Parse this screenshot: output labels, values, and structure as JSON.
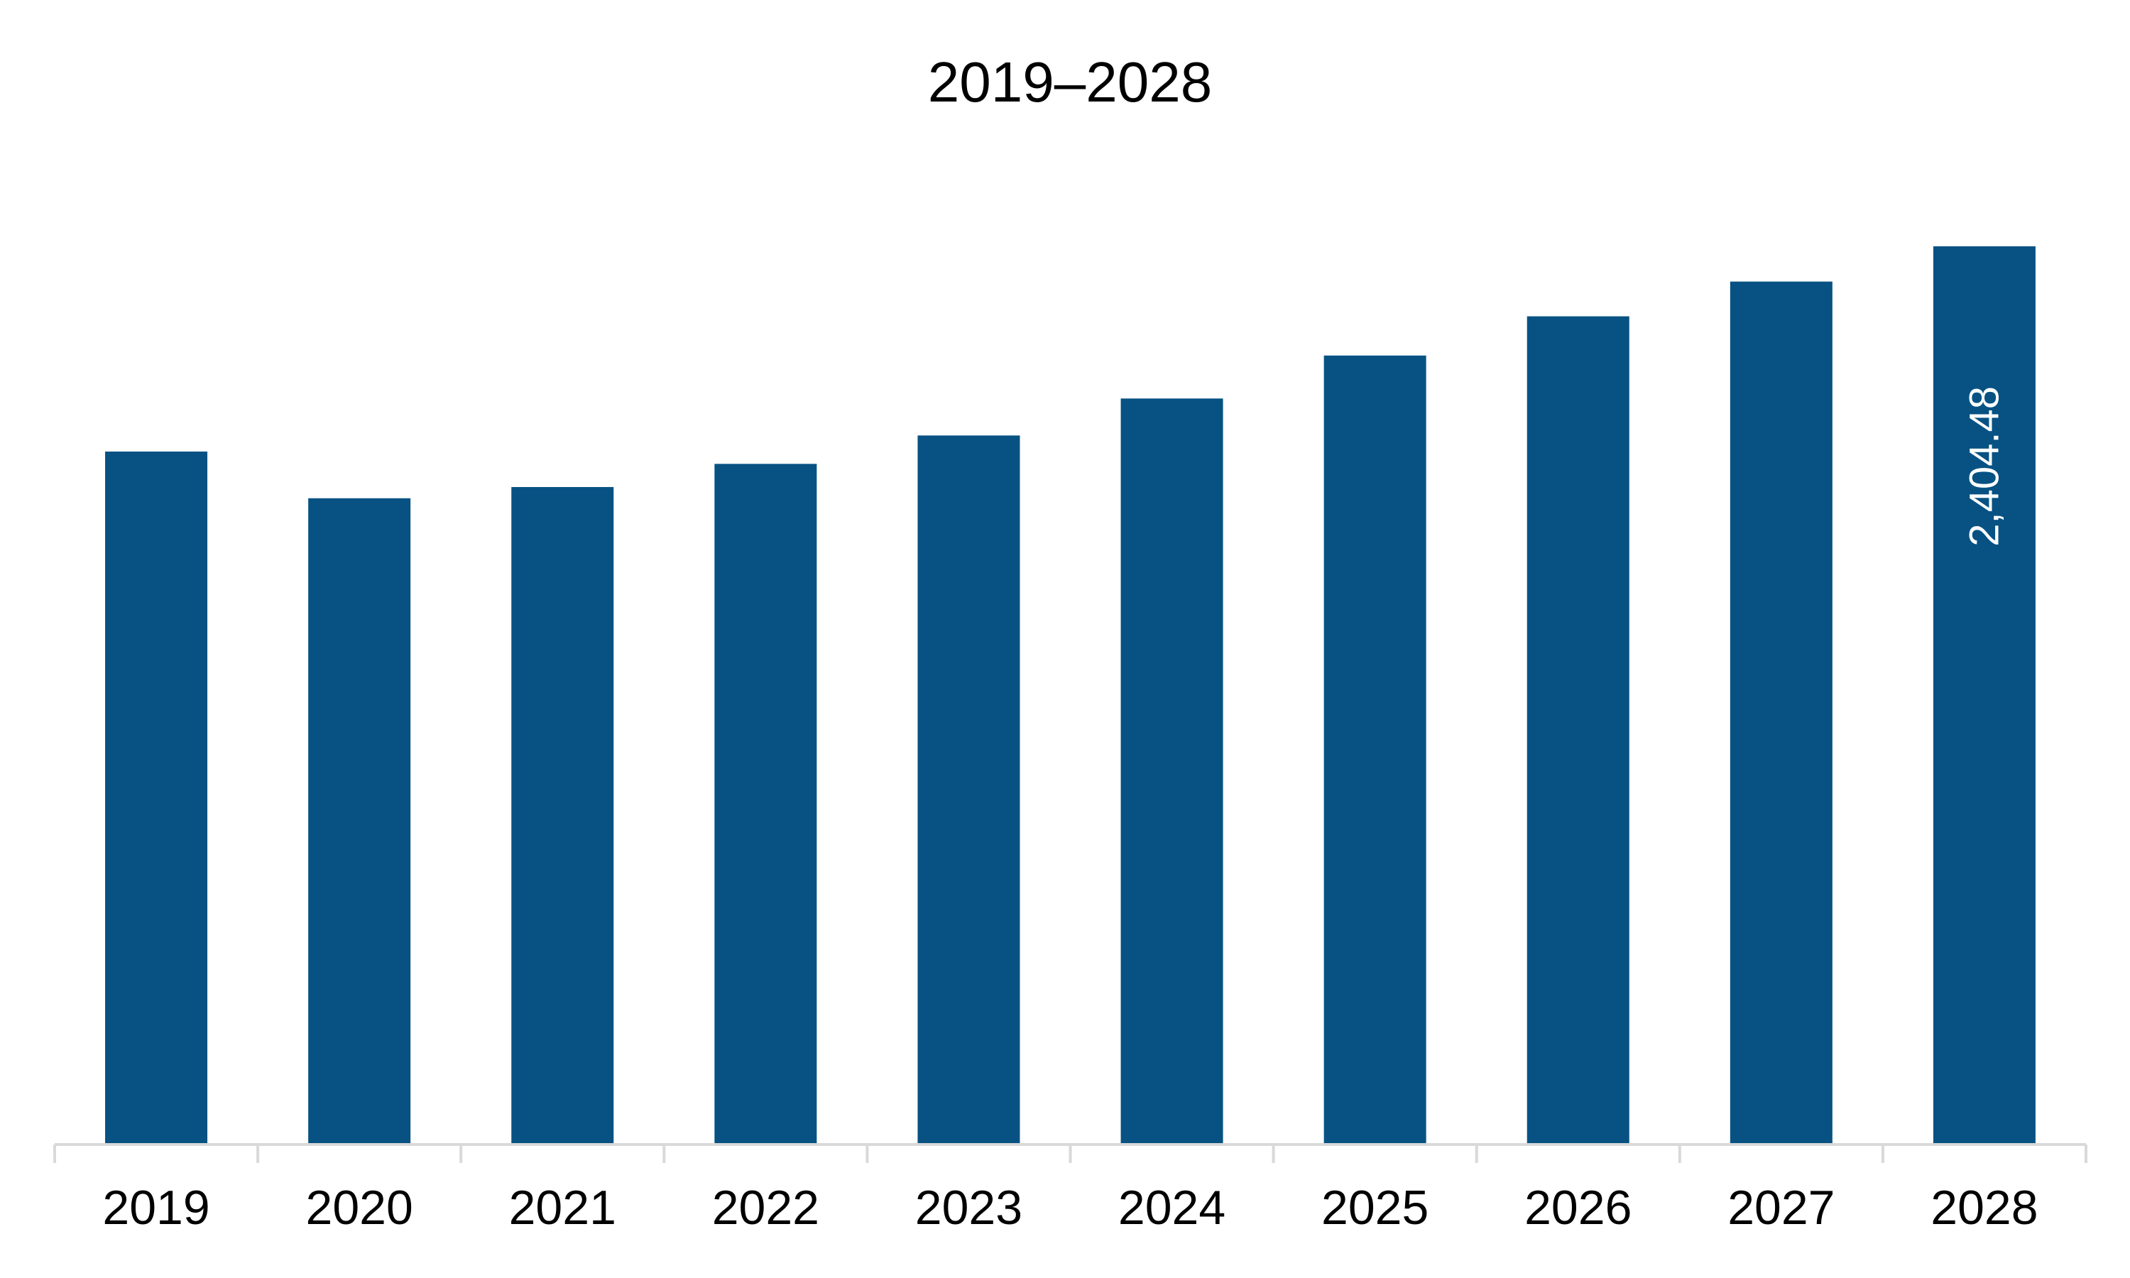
{
  "chart_data": {
    "type": "bar",
    "title": "2019–2028",
    "categories": [
      "2019",
      "2020",
      "2021",
      "2022",
      "2023",
      "2024",
      "2025",
      "2026",
      "2027",
      "2028"
    ],
    "values": [
      1855,
      1730,
      1760,
      1822,
      1898,
      1997,
      2112,
      2217,
      2310,
      2404.48
    ],
    "data_labels": [
      "",
      "",
      "",
      "",
      "",
      "",
      "",
      "",
      "",
      "2,404.48"
    ],
    "ylim": [
      0,
      2600
    ],
    "grid": false,
    "legend": "none",
    "bar_color": "#075283",
    "axis_color": "#d9d9d9",
    "label_color": "#ffffff"
  }
}
